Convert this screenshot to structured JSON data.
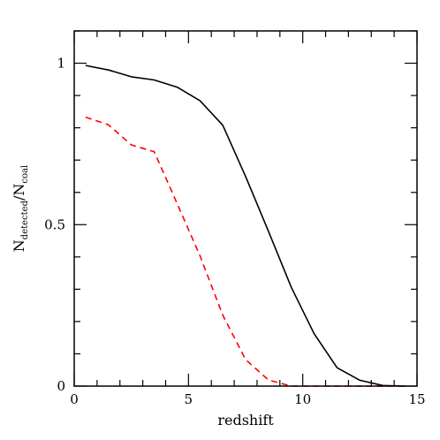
{
  "chart_data": {
    "type": "line",
    "title": "",
    "xlabel": "redshift",
    "ylabel": {
      "base1": "N",
      "sub1": "detected",
      "sep": "/",
      "base2": "N",
      "sub2": "coal"
    },
    "xlim": [
      0,
      15
    ],
    "ylim": [
      0,
      1.1
    ],
    "xticks_major": [
      0,
      5,
      10,
      15
    ],
    "xtick_labels": [
      "0",
      "5",
      "10",
      "15"
    ],
    "xticks_minor_step": 1,
    "yticks_major": [
      0,
      0.5,
      1
    ],
    "ytick_labels": [
      "0",
      "0.5",
      "1"
    ],
    "yticks_minor_step": 0.1,
    "grid": false,
    "legend": false,
    "series": [
      {
        "color": "#000000",
        "style": "solid",
        "x": [
          0.5,
          1.5,
          2.5,
          3.5,
          4.5,
          5.5,
          6.5,
          7.5,
          8.5,
          9.5,
          10.5,
          11.5,
          12.5,
          13.5,
          14.5
        ],
        "y": [
          0.993,
          0.979,
          0.958,
          0.948,
          0.926,
          0.884,
          0.808,
          0.649,
          0.479,
          0.306,
          0.162,
          0.057,
          0.018,
          0.002,
          0.0
        ]
      },
      {
        "color": "#ff0000",
        "style": "dashed",
        "x": [
          0.5,
          1.5,
          2.5,
          3.5,
          4.5,
          5.5,
          6.5,
          7.5,
          8.5,
          9.5,
          10.5,
          11.5,
          12.5,
          13.5,
          14.5
        ],
        "y": [
          0.833,
          0.809,
          0.747,
          0.726,
          0.566,
          0.404,
          0.22,
          0.082,
          0.019,
          0.0,
          0.0,
          0.0,
          0.0,
          0.0,
          0.0
        ]
      }
    ]
  }
}
